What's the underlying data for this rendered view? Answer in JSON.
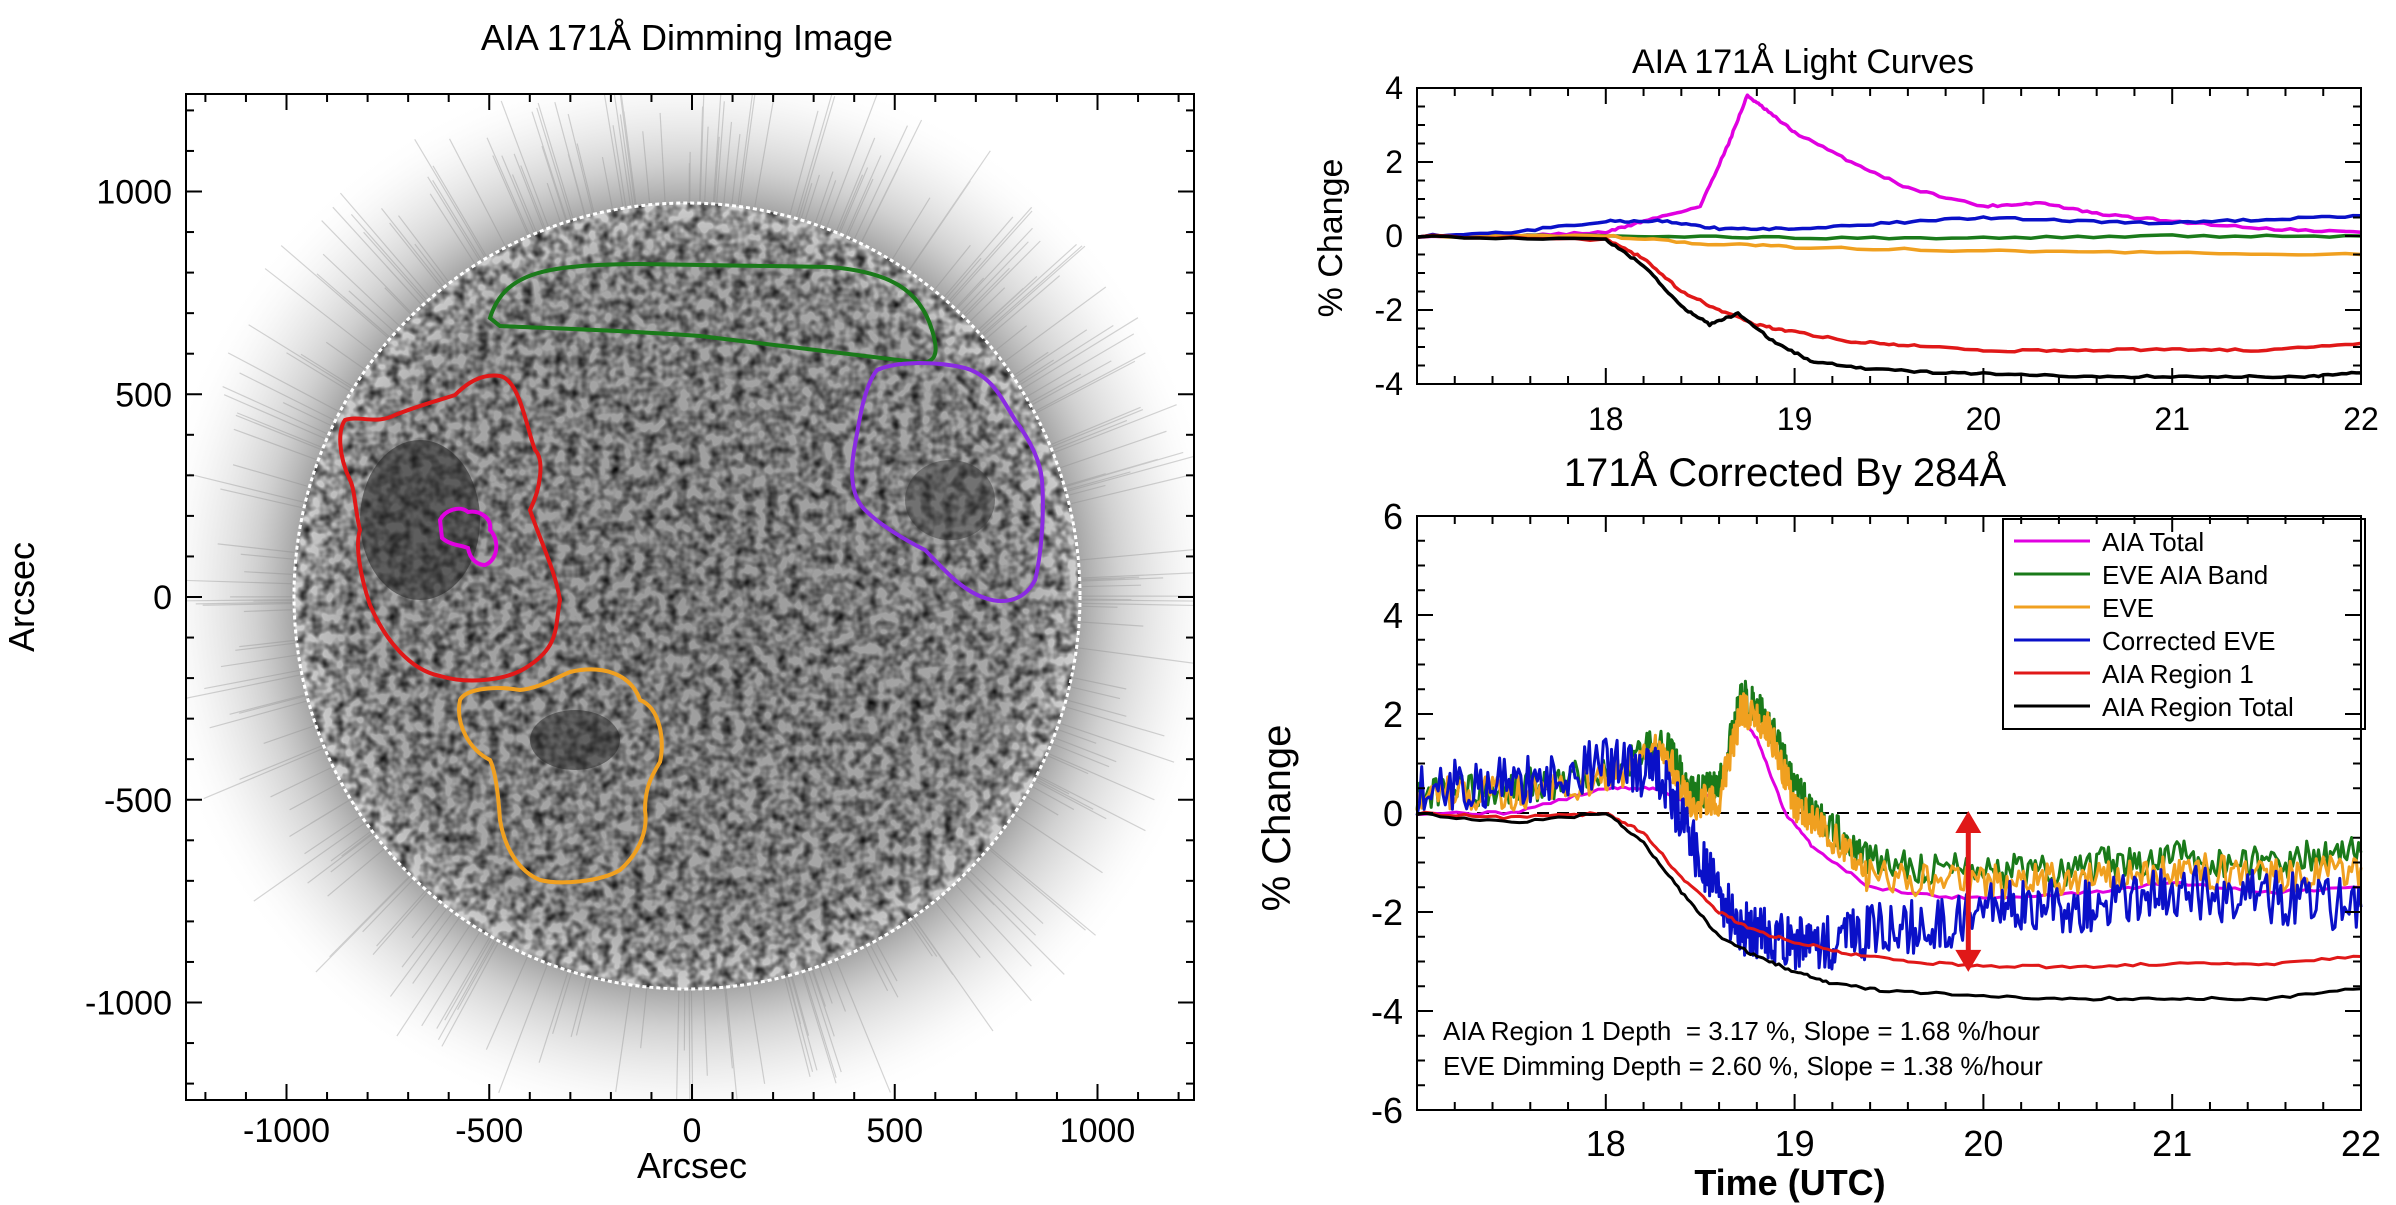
{
  "left_panel": {
    "title": "AIA 171Å Dimming Image",
    "xlabel": "Arcsec",
    "ylabel": "Arcsec",
    "x_ticks": [
      "-1000",
      "-500",
      "0",
      "500",
      "1000"
    ],
    "y_ticks": [
      "1000",
      "500",
      "0",
      "-500",
      "-1000"
    ],
    "region_colors": {
      "green": "#1a7a1a",
      "red": "#e01818",
      "magenta": "#e000e0",
      "purple": "#8a2be2",
      "orange": "#f0a020"
    }
  },
  "chart_data": [
    {
      "type": "line",
      "title": "AIA 171Å Light Curves",
      "xlabel": "",
      "ylabel": "% Change",
      "xlim": [
        17,
        22
      ],
      "ylim": [
        -4,
        4
      ],
      "x_ticks": [
        "18",
        "19",
        "20",
        "21",
        "22"
      ],
      "y_ticks": [
        "4",
        "2",
        "0",
        "-2",
        "-4"
      ],
      "series": [
        {
          "name": "AIA Total",
          "color": "#e000e0",
          "x": [
            17,
            17.5,
            18.0,
            18.2,
            18.5,
            18.65,
            18.75,
            18.85,
            19.0,
            19.3,
            19.6,
            20.0,
            20.3,
            20.6,
            21.0,
            21.5,
            22
          ],
          "y": [
            0,
            0,
            0.1,
            0.4,
            0.8,
            2.5,
            3.8,
            3.4,
            2.8,
            2.0,
            1.3,
            0.8,
            0.9,
            0.6,
            0.4,
            0.2,
            0.1
          ]
        },
        {
          "name": "EVE AIA Band",
          "color": "#1a7a1a",
          "x": [
            17,
            18,
            19,
            20,
            21,
            22
          ],
          "y": [
            0,
            0,
            -0.05,
            -0.05,
            0,
            0
          ]
        },
        {
          "name": "EVE",
          "color": "#f0a020",
          "x": [
            17,
            18,
            18.5,
            19,
            20,
            21,
            22
          ],
          "y": [
            0,
            0,
            -0.2,
            -0.3,
            -0.4,
            -0.45,
            -0.5
          ]
        },
        {
          "name": "Corrected EVE",
          "color": "#0a10c8",
          "x": [
            17,
            17.5,
            18.0,
            18.3,
            18.6,
            19.0,
            19.5,
            20.0,
            20.5,
            21.0,
            21.5,
            22
          ],
          "y": [
            0,
            0.1,
            0.4,
            0.4,
            0.2,
            0.2,
            0.35,
            0.5,
            0.4,
            0.35,
            0.45,
            0.55
          ]
        },
        {
          "name": "AIA Region 1",
          "color": "#e01818",
          "x": [
            17,
            18.0,
            18.2,
            18.4,
            18.6,
            18.8,
            19.0,
            19.3,
            19.6,
            20.0,
            20.5,
            21.0,
            21.5,
            22
          ],
          "y": [
            0,
            -0.1,
            -0.6,
            -1.5,
            -2.0,
            -2.4,
            -2.6,
            -2.85,
            -2.95,
            -3.1,
            -3.1,
            -3.05,
            -3.1,
            -2.9
          ]
        },
        {
          "name": "AIA Region Total",
          "color": "#000000",
          "x": [
            17,
            18.0,
            18.2,
            18.4,
            18.55,
            18.7,
            18.9,
            19.1,
            19.4,
            19.8,
            20.2,
            20.7,
            21.2,
            21.7,
            22
          ],
          "y": [
            0,
            -0.1,
            -0.8,
            -1.9,
            -2.4,
            -2.1,
            -2.9,
            -3.4,
            -3.6,
            -3.7,
            -3.75,
            -3.8,
            -3.8,
            -3.8,
            -3.7
          ]
        }
      ]
    },
    {
      "type": "line",
      "title": "171Å Corrected By 284Å",
      "xlabel": "Time (UTC)",
      "ylabel": "% Change",
      "xlim": [
        17,
        22
      ],
      "ylim": [
        -6,
        6
      ],
      "x_ticks": [
        "18",
        "19",
        "20",
        "21",
        "22"
      ],
      "y_ticks": [
        "6",
        "4",
        "2",
        "0",
        "-2",
        "-4",
        "-6"
      ],
      "legend": [
        "AIA Total",
        "EVE AIA Band",
        "EVE",
        "Corrected EVE",
        "AIA Region 1",
        "AIA Region Total"
      ],
      "legend_position": "top-right",
      "annotations": [
        "AIA Region 1 Depth  = 3.17 %, Slope = 1.68 %/hour",
        "EVE Dimming Depth = 2.60 %, Slope = 1.38 %/hour"
      ],
      "arrow": {
        "x": 19.92,
        "y_top": 0,
        "y_bottom": -3.17,
        "color": "#e01818"
      },
      "series": [
        {
          "name": "AIA Total",
          "color": "#e000e0",
          "x": [
            17,
            17.5,
            18.0,
            18.25,
            18.45,
            18.6,
            18.7,
            18.8,
            18.95,
            19.1,
            19.4,
            19.8,
            20.2,
            20.6,
            21.0,
            21.5,
            22
          ],
          "y": [
            0,
            0,
            0.5,
            0.5,
            0.2,
            0.5,
            2.0,
            1.5,
            0,
            -0.7,
            -1.5,
            -1.7,
            -1.7,
            -1.6,
            -1.4,
            -1.6,
            -1.5
          ]
        },
        {
          "name": "EVE AIA Band",
          "color": "#1a7a1a",
          "noise": 0.35,
          "x": [
            17,
            17.5,
            18.0,
            18.3,
            18.45,
            18.6,
            18.72,
            18.85,
            19.0,
            19.15,
            19.4,
            20.0,
            20.5,
            21.0,
            21.5,
            22
          ],
          "y": [
            0.4,
            0.5,
            0.8,
            1.5,
            0.4,
            0.5,
            2.4,
            2.0,
            0.5,
            -0.1,
            -1.0,
            -1.2,
            -1.1,
            -0.9,
            -1.0,
            -0.8
          ]
        },
        {
          "name": "EVE",
          "color": "#f0a020",
          "noise": 0.35,
          "x": [
            17,
            17.5,
            18.0,
            18.3,
            18.45,
            18.6,
            18.72,
            18.85,
            19.0,
            19.15,
            19.4,
            20.0,
            20.5,
            21.0,
            21.5,
            22
          ],
          "y": [
            0.4,
            0.4,
            0.7,
            1.3,
            0.2,
            0.3,
            2.1,
            1.8,
            0.2,
            -0.3,
            -1.3,
            -1.4,
            -1.3,
            -1.1,
            -1.3,
            -1.1
          ]
        },
        {
          "name": "Corrected EVE",
          "color": "#0a10c8",
          "noise": 0.55,
          "x": [
            17,
            17.5,
            18.0,
            18.3,
            18.5,
            18.7,
            18.9,
            19.1,
            19.4,
            19.8,
            20.2,
            20.6,
            21.0,
            21.5,
            22
          ],
          "y": [
            0.5,
            0.6,
            1.0,
            0.8,
            -1.0,
            -2.3,
            -2.5,
            -2.7,
            -2.4,
            -2.2,
            -1.8,
            -1.9,
            -1.6,
            -1.7,
            -1.9
          ]
        },
        {
          "name": "AIA Region 1",
          "color": "#e01818",
          "x": [
            17,
            17.5,
            18.0,
            18.2,
            18.4,
            18.6,
            18.8,
            19.0,
            19.3,
            19.6,
            20.0,
            20.5,
            21.0,
            21.5,
            22
          ],
          "y": [
            0,
            -0.1,
            0,
            -0.4,
            -1.3,
            -2.0,
            -2.4,
            -2.6,
            -2.85,
            -3.0,
            -3.1,
            -3.1,
            -3.05,
            -3.05,
            -2.9
          ]
        },
        {
          "name": "AIA Region Total",
          "color": "#000000",
          "x": [
            17,
            17.5,
            18.0,
            18.2,
            18.4,
            18.6,
            18.8,
            19.0,
            19.2,
            19.5,
            20.0,
            20.5,
            21.0,
            21.5,
            22
          ],
          "y": [
            0,
            -0.2,
            0,
            -0.6,
            -1.6,
            -2.5,
            -2.9,
            -3.2,
            -3.45,
            -3.6,
            -3.7,
            -3.75,
            -3.75,
            -3.75,
            -3.55
          ]
        }
      ]
    }
  ]
}
